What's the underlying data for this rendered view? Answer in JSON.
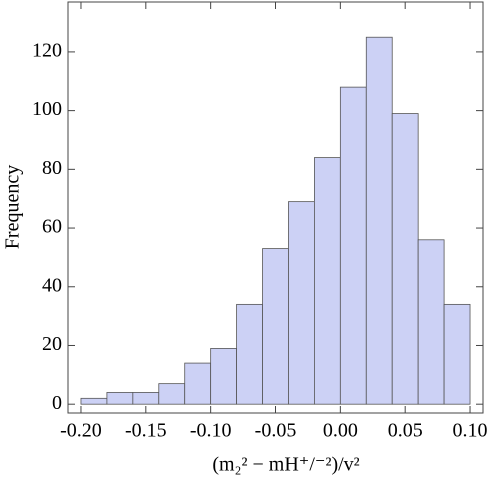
{
  "chart_data": {
    "type": "histogram",
    "xlabel": "(m₂² − mH⁺/⁻²)/v²",
    "ylabel": "Frequency",
    "bins": [
      -0.2,
      -0.18,
      -0.16,
      -0.14,
      -0.12,
      -0.1,
      -0.08,
      -0.06,
      -0.04,
      -0.02,
      0.0,
      0.02,
      0.04,
      0.06,
      0.08,
      0.1
    ],
    "values": [
      2,
      4,
      4,
      7,
      14,
      19,
      34,
      53,
      69,
      84,
      108,
      125,
      99,
      56,
      34
    ],
    "color": "#ccd1f5",
    "xlim": [
      -0.21,
      0.11
    ],
    "ylim": [
      -3,
      137
    ],
    "xticks": [
      {
        "value": -0.2,
        "label": "-0.20"
      },
      {
        "value": -0.15,
        "label": "-0.15"
      },
      {
        "value": -0.1,
        "label": "-0.10"
      },
      {
        "value": -0.05,
        "label": "-0.05"
      },
      {
        "value": 0,
        "label": "0.00"
      },
      {
        "value": 0.05,
        "label": "0.05"
      },
      {
        "value": 0.1,
        "label": "0.10"
      }
    ],
    "yticks": [
      0,
      20,
      40,
      60,
      80,
      100,
      120
    ]
  }
}
